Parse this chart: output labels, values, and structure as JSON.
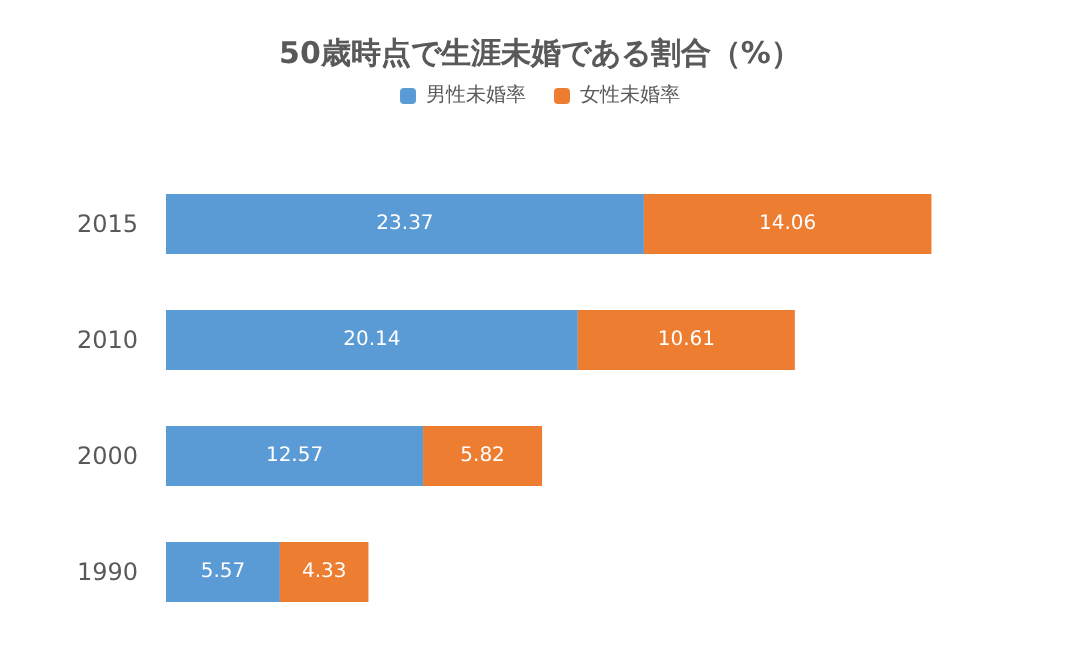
{
  "chart_data": {
    "type": "bar",
    "orientation": "horizontal",
    "stacked": true,
    "title": "50歳時点で生涯未婚である割合（%）",
    "categories": [
      "2015",
      "2010",
      "2000",
      "1990"
    ],
    "series": [
      {
        "name": "男性未婚率",
        "color": "#5b9bd5",
        "values": [
          23.37,
          20.14,
          12.57,
          5.57
        ]
      },
      {
        "name": "女性未婚率",
        "color": "#ed7d31",
        "values": [
          14.06,
          10.61,
          5.82,
          4.33
        ]
      }
    ],
    "data_labels": true,
    "legend": "top"
  }
}
